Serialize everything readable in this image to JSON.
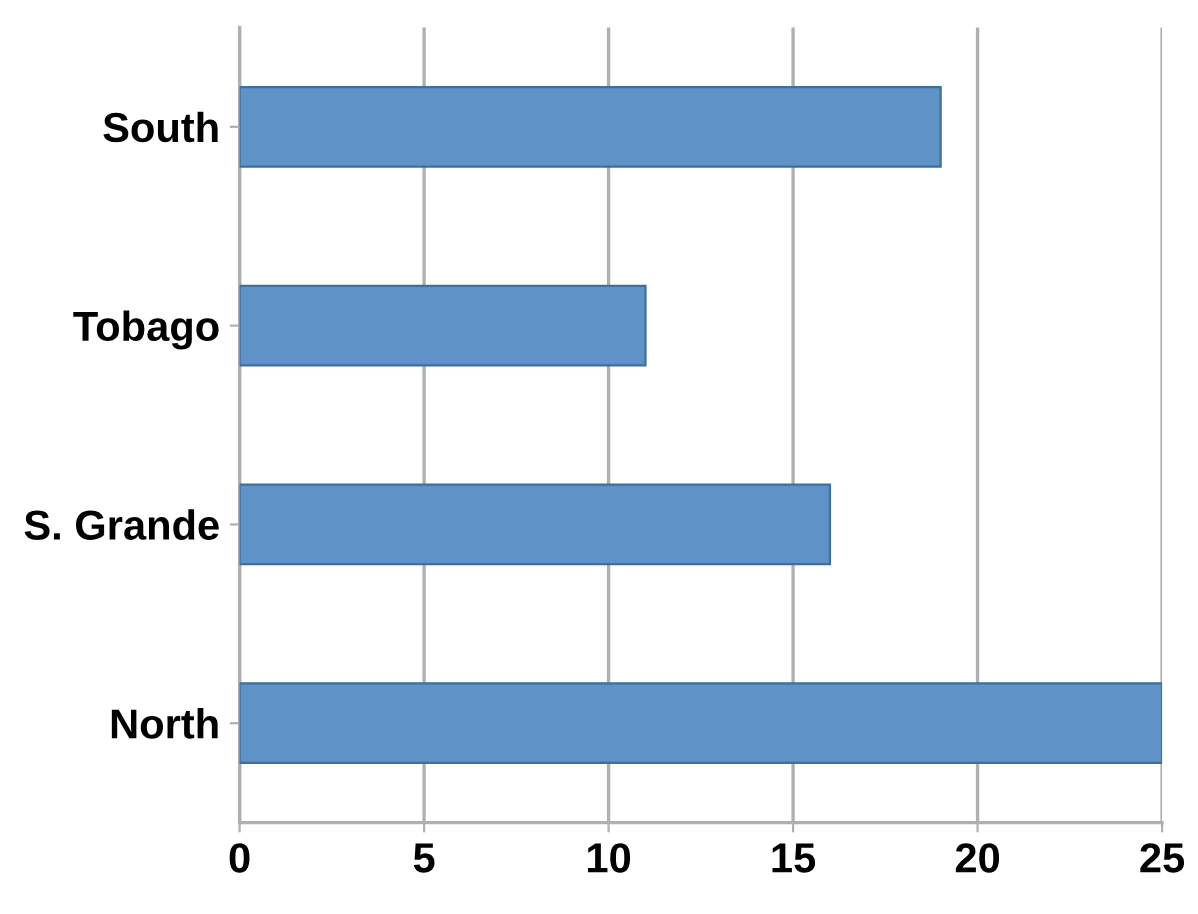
{
  "chart_data": {
    "type": "bar",
    "orientation": "horizontal",
    "categories": [
      "South",
      "Tobago",
      "S. Grande",
      "North"
    ],
    "values": [
      19,
      11,
      16,
      25
    ],
    "color": "#5f93c7",
    "xlim": [
      0,
      25
    ],
    "xticks": [
      0,
      5,
      10,
      15,
      20,
      25
    ],
    "grid": "x",
    "legend": false
  }
}
